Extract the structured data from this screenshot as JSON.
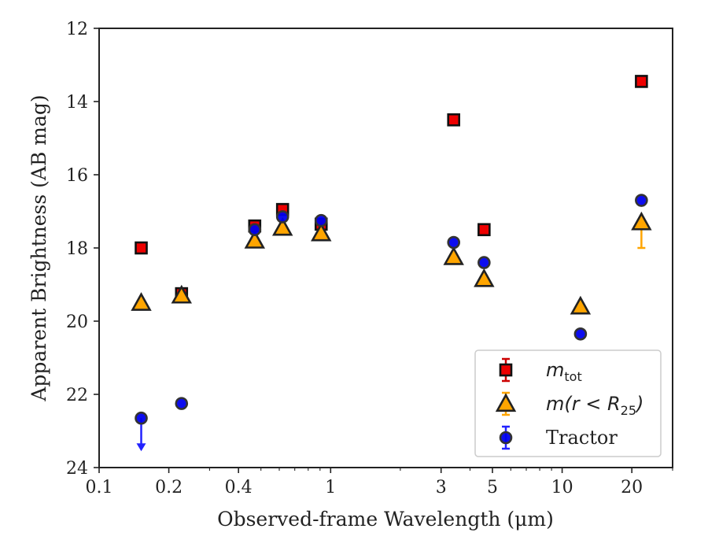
{
  "chart_data": {
    "type": "scatter",
    "title": "",
    "xlabel": "Observed-frame Wavelength (μm)",
    "ylabel": "Apparent Brightness (AB mag)",
    "xscale": "log",
    "xlim": [
      0.1,
      30
    ],
    "ylim": [
      24,
      12
    ],
    "y_inverted": true,
    "grid": false,
    "legend_position": "lower-right",
    "x_ticks": [
      {
        "value": 0.1,
        "label": "0.1"
      },
      {
        "value": 0.2,
        "label": "0.2"
      },
      {
        "value": 0.4,
        "label": "0.4"
      },
      {
        "value": 1,
        "label": "1"
      },
      {
        "value": 3,
        "label": "3"
      },
      {
        "value": 5,
        "label": "5"
      },
      {
        "value": 10,
        "label": "10"
      },
      {
        "value": 20,
        "label": "20"
      }
    ],
    "y_ticks": [
      {
        "value": 12,
        "label": "12"
      },
      {
        "value": 14,
        "label": "14"
      },
      {
        "value": 16,
        "label": "16"
      },
      {
        "value": 18,
        "label": "18"
      },
      {
        "value": 20,
        "label": "20"
      },
      {
        "value": 22,
        "label": "22"
      },
      {
        "value": 24,
        "label": "24"
      }
    ],
    "series": [
      {
        "name": "m_tot",
        "legend_label": {
          "math": "m",
          "sub": "tot"
        },
        "marker": "square",
        "color": "#ee0000",
        "edge_color": "#111111",
        "error_color": "#cc0000",
        "points": [
          {
            "x": 0.152,
            "y": 18.0
          },
          {
            "x": 0.227,
            "y": 19.25
          },
          {
            "x": 0.47,
            "y": 17.4
          },
          {
            "x": 0.62,
            "y": 16.95
          },
          {
            "x": 0.91,
            "y": 17.35
          },
          {
            "x": 3.4,
            "y": 14.5
          },
          {
            "x": 4.6,
            "y": 17.5
          },
          {
            "x": 22.0,
            "y": 13.45
          }
        ]
      },
      {
        "name": "m(r < R25)",
        "legend_label": {
          "math": "m(r < R",
          "sub": "25",
          "tail": ")"
        },
        "marker": "triangle",
        "color": "#ffa500",
        "edge_color": "#222222",
        "error_color": "#ffa500",
        "points": [
          {
            "x": 0.152,
            "y": 19.5
          },
          {
            "x": 0.227,
            "y": 19.3
          },
          {
            "x": 0.47,
            "y": 17.8
          },
          {
            "x": 0.62,
            "y": 17.45
          },
          {
            "x": 0.91,
            "y": 17.6
          },
          {
            "x": 3.4,
            "y": 18.25
          },
          {
            "x": 4.6,
            "y": 18.85
          },
          {
            "x": 12.0,
            "y": 19.6
          },
          {
            "x": 22.0,
            "y": 17.3,
            "yerr_low": 18.0
          }
        ]
      },
      {
        "name": "Tractor",
        "legend_label": {
          "text": "Tractor"
        },
        "marker": "circle",
        "color": "#0000ee",
        "edge_color": "#333333",
        "error_color": "#2222ff",
        "points": [
          {
            "x": 0.152,
            "y": 22.65,
            "upper_limit_arrow": true
          },
          {
            "x": 0.227,
            "y": 22.25
          },
          {
            "x": 0.47,
            "y": 17.5
          },
          {
            "x": 0.62,
            "y": 17.15
          },
          {
            "x": 0.91,
            "y": 17.25
          },
          {
            "x": 3.4,
            "y": 17.85
          },
          {
            "x": 4.6,
            "y": 18.4
          },
          {
            "x": 12.0,
            "y": 20.35
          },
          {
            "x": 22.0,
            "y": 16.7
          }
        ]
      }
    ]
  }
}
